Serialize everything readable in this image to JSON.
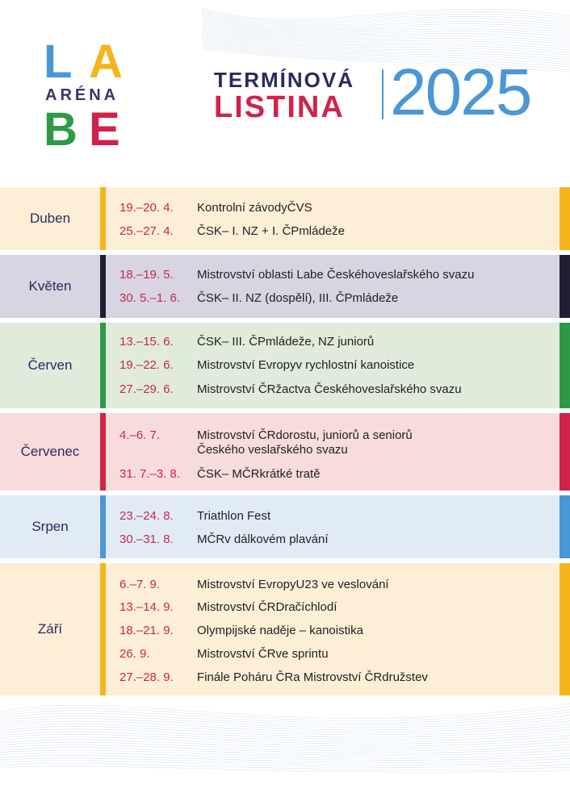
{
  "logo": {
    "line1": [
      "L",
      "A"
    ],
    "line2": "ARÉNA",
    "line3": [
      "B",
      "E"
    ],
    "colors": {
      "L": "#4a97d6",
      "A": "#f5b51a",
      "arena": "#3a3070",
      "B": "#2e9a48",
      "E": "#d0234a"
    }
  },
  "title": {
    "line1": "TERMÍNOVÁ",
    "line2": "LISTINA",
    "year": "2025"
  },
  "months": [
    {
      "name": "Duben",
      "bg": "#fcefd6",
      "bar": "#f5b51a",
      "events": [
        {
          "date": "19.–20. 4.",
          "desc": "Kontrolní  závodyČVS"
        },
        {
          "date": "25.–27. 4.",
          "desc": "ČSK– I. NZ + I. ČPmládeže"
        }
      ]
    },
    {
      "name": "Květen",
      "bg": "#d8d4e1",
      "bar": "#1f1e33",
      "events": [
        {
          "date": "18.–19. 5.",
          "desc": "Mistrovství  oblasti  Labe Českéhoveslařského svazu"
        },
        {
          "date": "30. 5.–1. 6.",
          "desc": "ČSK– II. NZ (dospělí), III. ČPmládeže"
        }
      ]
    },
    {
      "name": "Červen",
      "bg": "#e0ebdc",
      "bar": "#2e9a48",
      "events": [
        {
          "date": "13.–15. 6.",
          "desc": "ČSK– III. ČPmládeže, NZ juniorů"
        },
        {
          "date": "19.–22. 6.",
          "desc": "Mistrovství  Evropyv rychlostní kanoistice"
        },
        {
          "date": "27.–29. 6.",
          "desc": "Mistrovství  ČRžactva  Českéhoveslařského svazu"
        }
      ]
    },
    {
      "name": "Červenec",
      "bg": "#f8dcdb",
      "bar": "#d0234a",
      "events": [
        {
          "date": "4.–6. 7.",
          "desc": "Mistrovství  ČRdorostu, juniorů a seniorů",
          "desc2": "Českého veslařského svazu"
        },
        {
          "date": "31. 7.–3. 8.",
          "desc": "ČSK– MČRkrátké tratě"
        }
      ]
    },
    {
      "name": "Srpen",
      "bg": "#e1ebf6",
      "bar": "#4a97d6",
      "events": [
        {
          "date": "23.–24. 8.",
          "desc": "Triathlon Fest"
        },
        {
          "date": "30.–31. 8.",
          "desc": "MČRv dálkovém plavání"
        }
      ]
    },
    {
      "name": "Září",
      "bg": "#fcefd6",
      "bar": "#f5b51a",
      "events": [
        {
          "date": "6.–7. 9.",
          "desc": "Mistrovství  EvropyU23 ve veslování"
        },
        {
          "date": "13.–14. 9.",
          "desc": "Mistrovství  ČRDračíchlodí"
        },
        {
          "date": "18.–21. 9.",
          "desc": "Olympijské naděje – kanoistika"
        },
        {
          "date": "26. 9.",
          "desc": "Mistrovství  ČRve sprintu"
        },
        {
          "date": "27.–28. 9.",
          "desc": "Finále Poháru ČRa Mistrovství  ČRdružstev"
        }
      ]
    }
  ]
}
